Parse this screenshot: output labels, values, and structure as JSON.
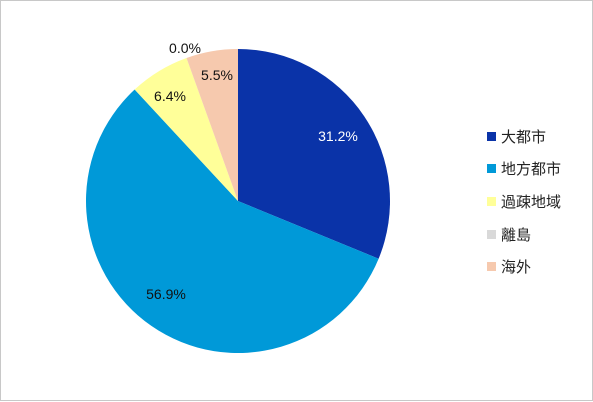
{
  "chart_data": {
    "type": "pie",
    "categories": [
      "大都市",
      "地方都市",
      "過疎地域",
      "離島",
      "海外"
    ],
    "values": [
      31.2,
      56.9,
      6.4,
      0.0,
      5.5
    ],
    "data_labels": [
      "31.2%",
      "56.9%",
      "6.4%",
      "0.0%",
      "5.5%"
    ],
    "colors": [
      "#0a33a8",
      "#0099d8",
      "#ffff99",
      "#d9d9d9",
      "#f6c9ae"
    ],
    "label_colors": [
      "#ffffff",
      "#111111",
      "#111111",
      "#111111",
      "#111111"
    ],
    "legend_position": "right",
    "start_angle": "12 o'clock, clockwise"
  }
}
